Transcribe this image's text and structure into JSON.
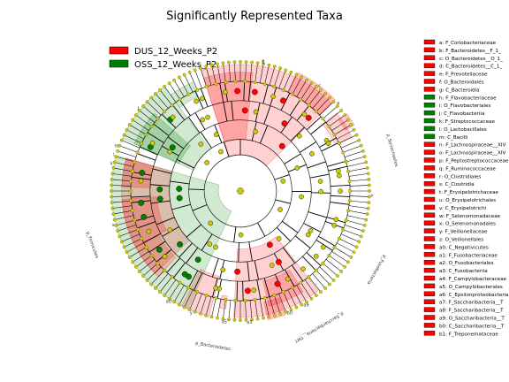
{
  "chart_data": {
    "type": "cladogram",
    "title": "Significantly Represented Taxa",
    "colors": {
      "DUS_12_Weeks_P2": "#ff0000",
      "OSS_12_Weeks_P2": "#008000",
      "nonsignificant": "#cccc00",
      "branch": "#000000"
    },
    "groups": [
      {
        "name": "DUS_12_Weeks_P2",
        "color": "#ff0000"
      },
      {
        "name": "OSS_12_Weeks_P2",
        "color": "#008000"
      }
    ],
    "taxa": [
      {
        "code": "a",
        "label": "a: F_Coriobacteriaceae",
        "group": "DUS_12_Weeks_P2"
      },
      {
        "code": "b",
        "label": "b: F_Bacteroidetes__F_1_",
        "group": "DUS_12_Weeks_P2"
      },
      {
        "code": "c",
        "label": "c: O_Bacteroidetes__O_1_",
        "group": "DUS_12_Weeks_P2"
      },
      {
        "code": "d",
        "label": "d: C_Bacteroidetes__C_1_",
        "group": "DUS_12_Weeks_P2"
      },
      {
        "code": "e",
        "label": "e: F_Prevotellaceae",
        "group": "DUS_12_Weeks_P2"
      },
      {
        "code": "f",
        "label": "f: O_Bacteroidales",
        "group": "DUS_12_Weeks_P2"
      },
      {
        "code": "g",
        "label": "g: C_Bacteroidia",
        "group": "DUS_12_Weeks_P2"
      },
      {
        "code": "h",
        "label": "h: F_Flavobacteriaceae",
        "group": "OSS_12_Weeks_P2"
      },
      {
        "code": "i",
        "label": "i: O_Flavobacteriales",
        "group": "OSS_12_Weeks_P2"
      },
      {
        "code": "j",
        "label": "j: C_Flavobacteriia",
        "group": "OSS_12_Weeks_P2"
      },
      {
        "code": "k",
        "label": "k: F_Streptococcaceae",
        "group": "OSS_12_Weeks_P2"
      },
      {
        "code": "l",
        "label": "l: O_Lactobacillales",
        "group": "OSS_12_Weeks_P2"
      },
      {
        "code": "m",
        "label": "m: C_Bacilli",
        "group": "OSS_12_Weeks_P2"
      },
      {
        "code": "n",
        "label": "n: F_Lachnospiraceae__XIV",
        "group": "DUS_12_Weeks_P2"
      },
      {
        "code": "o",
        "label": "o: F_Lachnospiraceae__XIV",
        "group": "DUS_12_Weeks_P2"
      },
      {
        "code": "p",
        "label": "p: F_Peptostreptococcaceae",
        "group": "DUS_12_Weeks_P2"
      },
      {
        "code": "q",
        "label": "q: F_Ruminococcaceae",
        "group": "DUS_12_Weeks_P2"
      },
      {
        "code": "r",
        "label": "r: O_Clostridiales",
        "group": "DUS_12_Weeks_P2"
      },
      {
        "code": "s",
        "label": "s: C_Clostridia",
        "group": "DUS_12_Weeks_P2"
      },
      {
        "code": "t",
        "label": "t: F_Erysipelotrichaceae",
        "group": "DUS_12_Weeks_P2"
      },
      {
        "code": "u",
        "label": "u: O_Erysipelotrichales",
        "group": "DUS_12_Weeks_P2"
      },
      {
        "code": "v",
        "label": "v: C_Erysipelotrichi",
        "group": "DUS_12_Weeks_P2"
      },
      {
        "code": "w",
        "label": "w: F_Selenomonadaceae",
        "group": "DUS_12_Weeks_P2"
      },
      {
        "code": "x",
        "label": "x: O_Selenomonadales",
        "group": "DUS_12_Weeks_P2"
      },
      {
        "code": "y",
        "label": "y: F_Veillonellaceae",
        "group": "DUS_12_Weeks_P2"
      },
      {
        "code": "z",
        "label": "z: O_Veillonellales",
        "group": "DUS_12_Weeks_P2"
      },
      {
        "code": "a0",
        "label": "a0: C_Negativicutes",
        "group": "DUS_12_Weeks_P2"
      },
      {
        "code": "a1",
        "label": "a1: F_Fusobacteriaceae",
        "group": "DUS_12_Weeks_P2"
      },
      {
        "code": "a2",
        "label": "a2: O_Fusobacteriales",
        "group": "DUS_12_Weeks_P2"
      },
      {
        "code": "a3",
        "label": "a3: C_Fusobacteriia",
        "group": "DUS_12_Weeks_P2"
      },
      {
        "code": "a4",
        "label": "a4: F_Campylobacteraceae",
        "group": "DUS_12_Weeks_P2"
      },
      {
        "code": "a5",
        "label": "a5: O_Campylobacterales",
        "group": "DUS_12_Weeks_P2"
      },
      {
        "code": "a6",
        "label": "a6: C_Epsilonproteobacteria",
        "group": "DUS_12_Weeks_P2"
      },
      {
        "code": "a7",
        "label": "a7: F_Saccharibacteria__T",
        "group": "DUS_12_Weeks_P2"
      },
      {
        "code": "a8",
        "label": "a8: F_Saccharibacteria__T",
        "group": "DUS_12_Weeks_P2"
      },
      {
        "code": "a9",
        "label": "a9: O_Saccharibacteria__T",
        "group": "DUS_12_Weeks_P2"
      },
      {
        "code": "b0",
        "label": "b0: C_Saccharibacteria__T",
        "group": "DUS_12_Weeks_P2"
      },
      {
        "code": "b1",
        "label": "b1: F_Treponemataceae",
        "group": "DUS_12_Weeks_P2"
      }
    ],
    "clades": [
      {
        "group": "DUS_12_Weeks_P2",
        "start_deg": 252,
        "end_deg": 316,
        "inner": 0.28,
        "outer": 0.98
      },
      {
        "group": "DUS_12_Weeks_P2",
        "start_deg": 252,
        "end_deg": 276,
        "inner": 0.4,
        "outer": 0.92,
        "extra": true
      },
      {
        "group": "DUS_12_Weeks_P2",
        "start_deg": 296,
        "end_deg": 316,
        "inner": 0.85,
        "outer": 1.02,
        "extra": true
      },
      {
        "group": "OSS_12_Weeks_P2",
        "start_deg": 204,
        "end_deg": 234,
        "inner": 0.4,
        "outer": 1.0
      },
      {
        "group": "OSS_12_Weeks_P2",
        "start_deg": 204,
        "end_deg": 222,
        "inner": 0.52,
        "outer": 0.9,
        "extra": true
      },
      {
        "group": "OSS_12_Weeks_P2",
        "start_deg": 234,
        "end_deg": 246,
        "inner": 0.8,
        "outer": 0.92
      },
      {
        "group": "OSS_12_Weeks_P2",
        "start_deg": 114,
        "end_deg": 196,
        "inner": 0.17,
        "outer": 1.0
      },
      {
        "group": "DUS_12_Weeks_P2",
        "start_deg": 136,
        "end_deg": 196,
        "inner": 0.55,
        "outer": 0.92
      },
      {
        "group": "DUS_12_Weeks_P2",
        "start_deg": 152,
        "end_deg": 176,
        "inner": 0.65,
        "outer": 0.92,
        "extra": true
      },
      {
        "group": "DUS_12_Weeks_P2",
        "start_deg": 182,
        "end_deg": 196,
        "inner": 0.7,
        "outer": 0.92,
        "extra": true
      },
      {
        "group": "DUS_12_Weeks_P2",
        "start_deg": 134,
        "end_deg": 152,
        "inner": 0.72,
        "outer": 0.92
      },
      {
        "group": "DUS_12_Weeks_P2",
        "start_deg": 104,
        "end_deg": 117,
        "inner": 0.68,
        "outer": 1.0
      },
      {
        "group": "DUS_12_Weeks_P2",
        "start_deg": 52,
        "end_deg": 93,
        "inner": 0.45,
        "outer": 0.98
      },
      {
        "group": "DUS_12_Weeks_P2",
        "start_deg": 58,
        "end_deg": 76,
        "inner": 0.72,
        "outer": 0.92,
        "extra": true
      },
      {
        "group": "DUS_12_Weeks_P2",
        "start_deg": 70,
        "end_deg": 78,
        "inner": 0.88,
        "outer": 1.02,
        "extra": true
      },
      {
        "group": "DUS_12_Weeks_P2",
        "start_deg": 321,
        "end_deg": 334,
        "inner": 0.82,
        "outer": 0.96
      },
      {
        "group": "DUS_12_Weeks_P2",
        "start_deg": 324,
        "end_deg": 330,
        "inner": 0.94,
        "outer": 1.02,
        "extra": true
      },
      {
        "group": "DUS_12_Weeks_P2",
        "start_deg": 97,
        "end_deg": 100,
        "inner": 0.82,
        "outer": 0.92
      }
    ],
    "sector_labels": [
      {
        "text": "g",
        "angle_deg": 280
      },
      {
        "text": "f",
        "angle_deg": 280
      },
      {
        "text": "c",
        "angle_deg": 307
      },
      {
        "text": "a",
        "angle_deg": 318
      },
      {
        "text": "j",
        "angle_deg": 219
      },
      {
        "text": "i",
        "angle_deg": 219
      },
      {
        "text": "m",
        "angle_deg": 200
      },
      {
        "text": "l",
        "angle_deg": 196
      },
      {
        "text": "k",
        "angle_deg": 192
      },
      {
        "text": "s",
        "angle_deg": 165
      },
      {
        "text": "a0",
        "angle_deg": 123
      },
      {
        "text": "y",
        "angle_deg": 112
      },
      {
        "text": "a5",
        "angle_deg": 97
      },
      {
        "text": "a3",
        "angle_deg": 86
      },
      {
        "text": "b0",
        "angle_deg": 68
      },
      {
        "text": "a9",
        "angle_deg": 60
      },
      {
        "text": "v",
        "angle_deg": 2
      }
    ],
    "outer_phylum_labels": [
      {
        "text": "p_Firmicutes",
        "angle_deg": 160
      },
      {
        "text": "p_Bacteroidetes",
        "angle_deg": 100
      },
      {
        "text": "p_Saccharibacteria__TM7",
        "angle_deg": 60
      },
      {
        "text": "p_Fusobacteria",
        "angle_deg": 30
      },
      {
        "text": "p_Spirochaetes",
        "angle_deg": 345
      }
    ]
  }
}
